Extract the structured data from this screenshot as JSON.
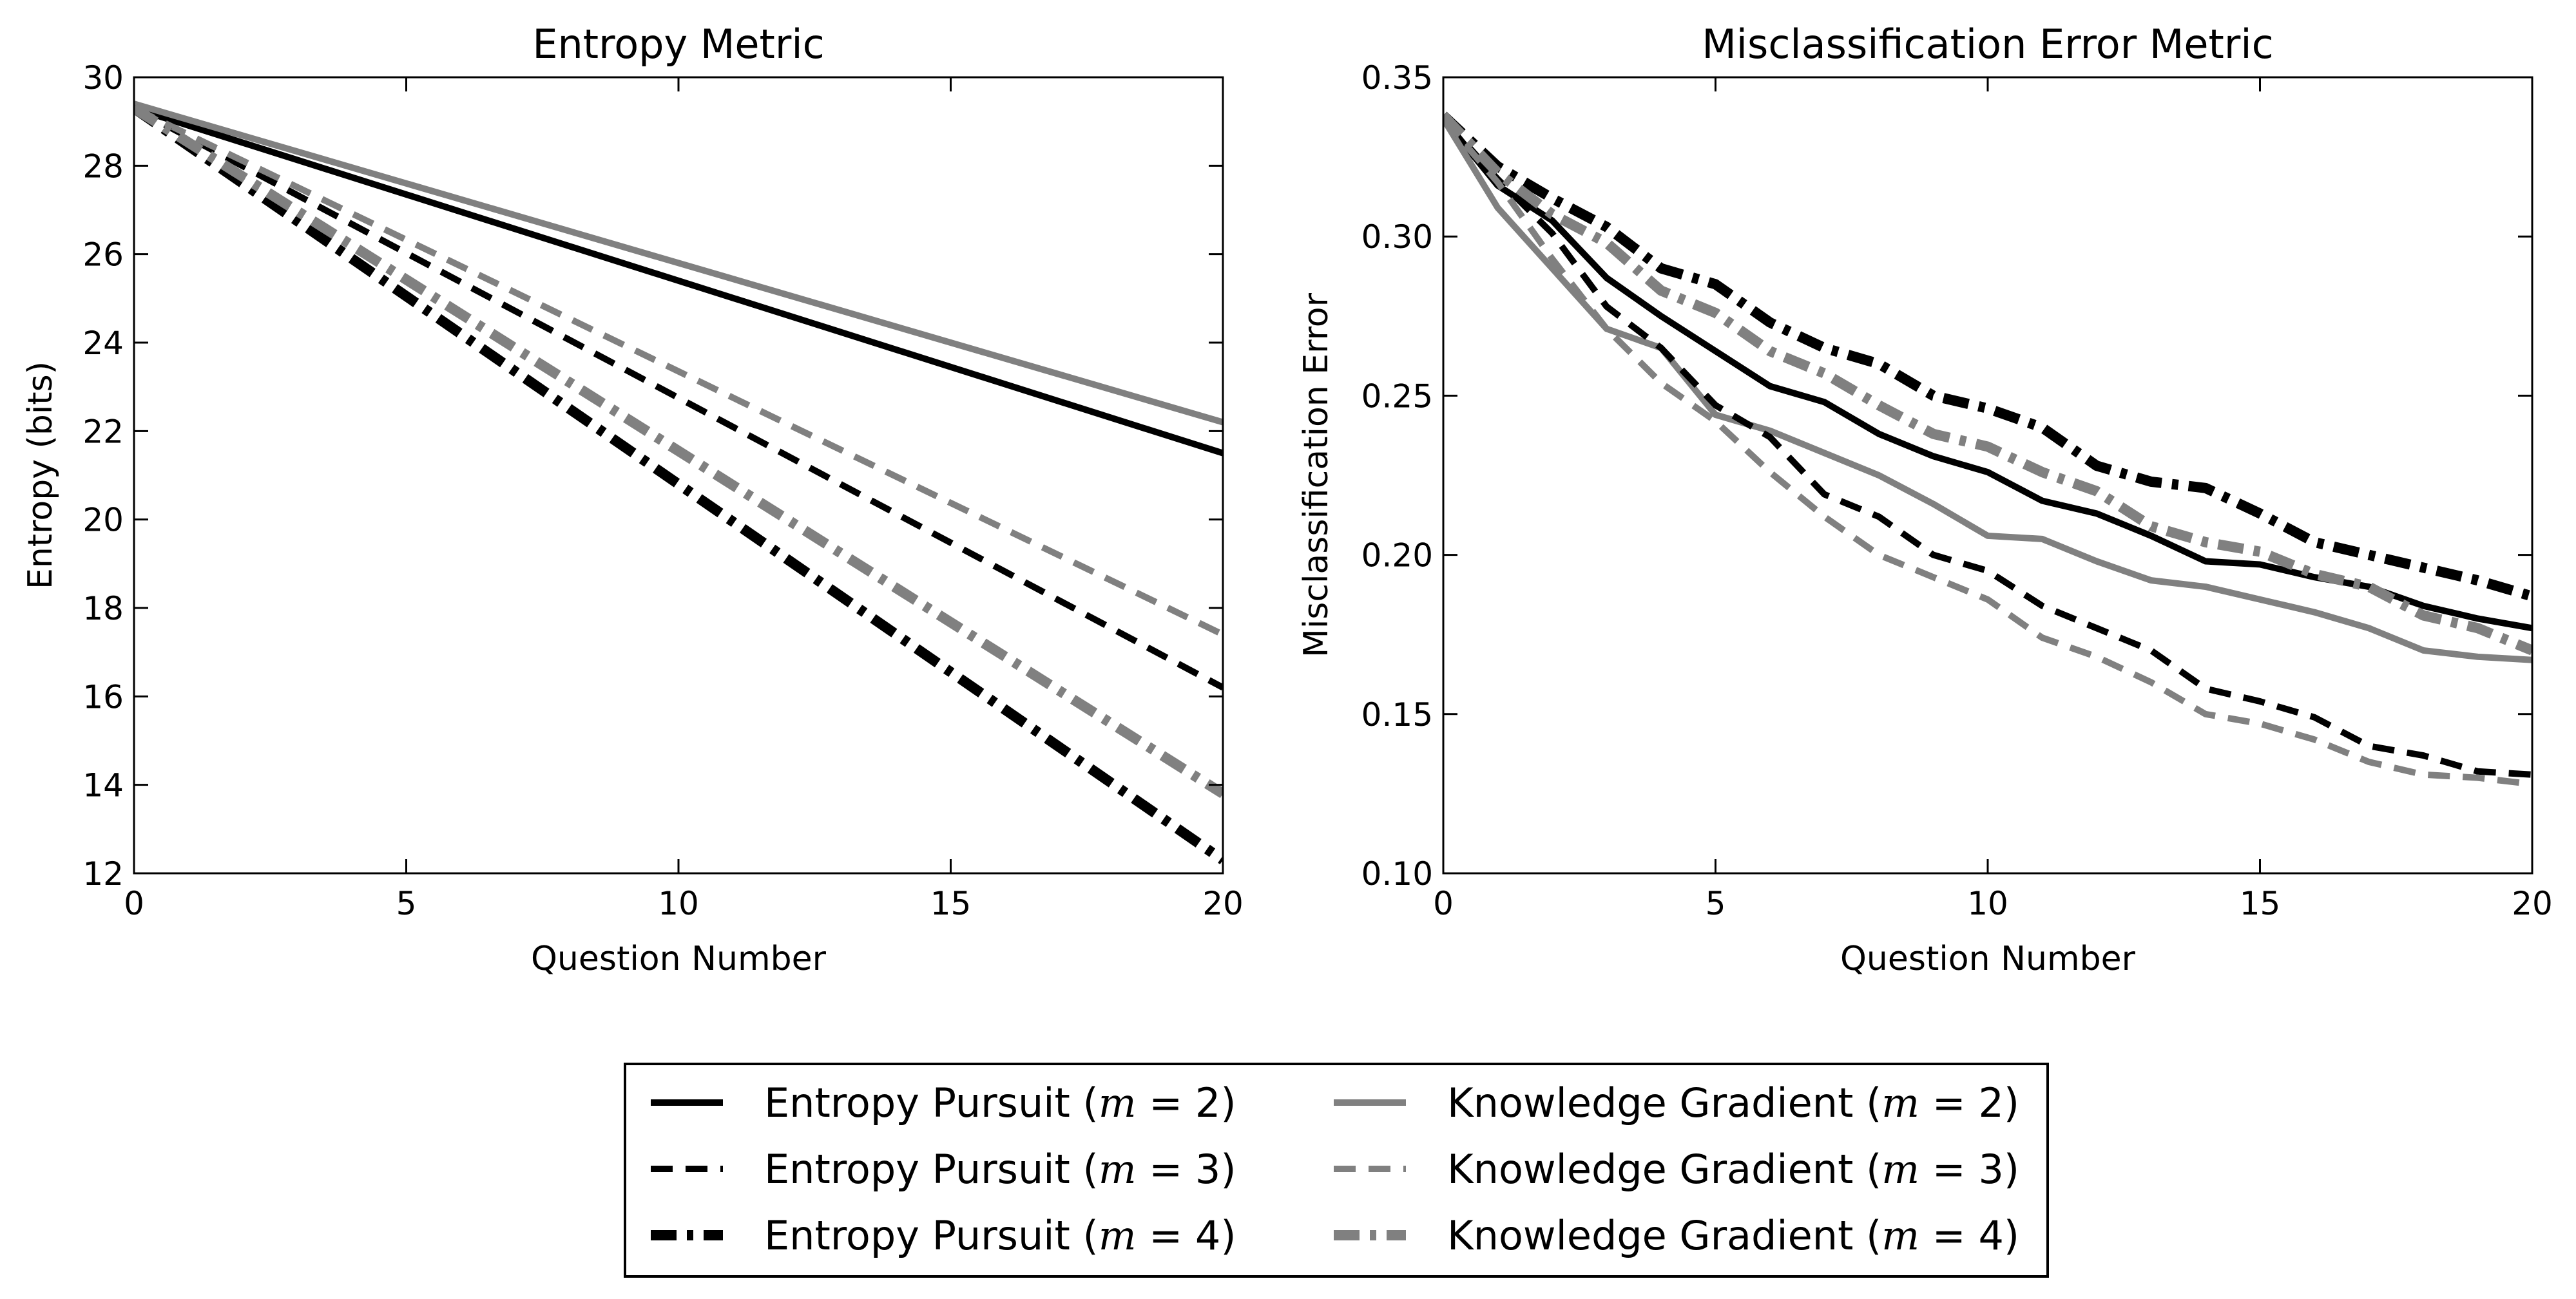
{
  "chart_data": [
    {
      "type": "line",
      "title": "Entropy Metric",
      "xlabel": "Question Number",
      "ylabel": "Entropy (bits)",
      "xlim": [
        0,
        20
      ],
      "ylim": [
        12,
        30
      ],
      "xticks": [
        "0",
        "5",
        "10",
        "15",
        "20"
      ],
      "yticks": [
        "12",
        "14",
        "16",
        "18",
        "20",
        "22",
        "24",
        "26",
        "28",
        "30"
      ],
      "x": [
        0,
        20
      ],
      "series": [
        {
          "name": "Entropy Pursuit (m=2)",
          "values": [
            29.3,
            21.5
          ]
        },
        {
          "name": "Knowledge Gradient (m=2)",
          "values": [
            29.4,
            22.2
          ]
        },
        {
          "name": "Entropy Pursuit (m=3)",
          "values": [
            29.3,
            16.2
          ]
        },
        {
          "name": "Knowledge Gradient (m=3)",
          "values": [
            29.3,
            17.4
          ]
        },
        {
          "name": "Entropy Pursuit (m=4)",
          "values": [
            29.3,
            12.3
          ]
        },
        {
          "name": "Knowledge Gradient (m=4)",
          "values": [
            29.3,
            13.8
          ]
        }
      ]
    },
    {
      "type": "line",
      "title": "Misclassification Error Metric",
      "xlabel": "Question Number",
      "ylabel": "Misclassification Error",
      "xlim": [
        0,
        20
      ],
      "ylim": [
        0.1,
        0.35
      ],
      "xticks": [
        "0",
        "5",
        "10",
        "15",
        "20"
      ],
      "yticks": [
        "0.10",
        "0.15",
        "0.20",
        "0.25",
        "0.30",
        "0.35"
      ],
      "x": [
        0,
        1,
        2,
        3,
        4,
        5,
        6,
        7,
        8,
        9,
        10,
        11,
        12,
        13,
        14,
        15,
        16,
        17,
        18,
        19,
        20
      ],
      "series": [
        {
          "name": "Entropy Pursuit (m=2)",
          "values": [
            0.337,
            0.316,
            0.305,
            0.287,
            0.275,
            0.264,
            0.253,
            0.248,
            0.238,
            0.231,
            0.226,
            0.217,
            0.213,
            0.206,
            0.198,
            0.197,
            0.193,
            0.19,
            0.184,
            0.18,
            0.177
          ]
        },
        {
          "name": "Knowledge Gradient (m=2)",
          "values": [
            0.337,
            0.309,
            0.29,
            0.271,
            0.265,
            0.244,
            0.239,
            0.232,
            0.225,
            0.216,
            0.206,
            0.205,
            0.198,
            0.192,
            0.19,
            0.186,
            0.182,
            0.177,
            0.17,
            0.168,
            0.167
          ]
        },
        {
          "name": "Entropy Pursuit (m=3)",
          "values": [
            0.337,
            0.318,
            0.301,
            0.278,
            0.265,
            0.247,
            0.237,
            0.219,
            0.212,
            0.2,
            0.195,
            0.184,
            0.177,
            0.17,
            0.158,
            0.154,
            0.149,
            0.14,
            0.137,
            0.132,
            0.131
          ]
        },
        {
          "name": "Knowledge Gradient (m=3)",
          "values": [
            0.337,
            0.317,
            0.293,
            0.271,
            0.254,
            0.242,
            0.226,
            0.212,
            0.2,
            0.193,
            0.186,
            0.174,
            0.168,
            0.16,
            0.15,
            0.147,
            0.142,
            0.135,
            0.131,
            0.13,
            0.128
          ]
        },
        {
          "name": "Entropy Pursuit (m=4)",
          "values": [
            0.338,
            0.322,
            0.312,
            0.303,
            0.29,
            0.285,
            0.273,
            0.265,
            0.26,
            0.25,
            0.246,
            0.24,
            0.228,
            0.223,
            0.221,
            0.213,
            0.204,
            0.2,
            0.196,
            0.192,
            0.187
          ]
        },
        {
          "name": "Knowledge Gradient (m=4)",
          "values": [
            0.338,
            0.32,
            0.307,
            0.298,
            0.283,
            0.276,
            0.264,
            0.257,
            0.247,
            0.238,
            0.234,
            0.226,
            0.22,
            0.209,
            0.204,
            0.201,
            0.194,
            0.19,
            0.181,
            0.177,
            0.17
          ]
        }
      ]
    }
  ],
  "legend": {
    "placement": "bottom-center",
    "entries": [
      {
        "prefix": "Entropy Pursuit (",
        "var": "m",
        "eq": " = ",
        "num": "2",
        "suffix": ")",
        "color": "#000000",
        "style": "solid"
      },
      {
        "prefix": "Entropy Pursuit (",
        "var": "m",
        "eq": " = ",
        "num": "3",
        "suffix": ")",
        "color": "#000000",
        "style": "dashed"
      },
      {
        "prefix": "Entropy Pursuit (",
        "var": "m",
        "eq": " = ",
        "num": "4",
        "suffix": ")",
        "color": "#000000",
        "style": "dashdot"
      },
      {
        "prefix": "Knowledge Gradient (",
        "var": "m",
        "eq": " = ",
        "num": "2",
        "suffix": ")",
        "color": "#808080",
        "style": "solid"
      },
      {
        "prefix": "Knowledge Gradient (",
        "var": "m",
        "eq": " = ",
        "num": "3",
        "suffix": ")",
        "color": "#808080",
        "style": "dashed"
      },
      {
        "prefix": "Knowledge Gradient (",
        "var": "m",
        "eq": " = ",
        "num": "4",
        "suffix": ")",
        "color": "#808080",
        "style": "dashdot"
      }
    ]
  }
}
